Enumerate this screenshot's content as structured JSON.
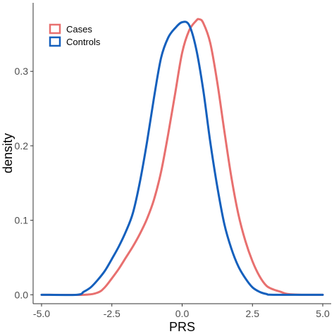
{
  "chart_data": {
    "type": "line",
    "title": "",
    "xlabel": "PRS",
    "ylabel": "density",
    "xlim": [
      -5.3,
      5.3
    ],
    "ylim": [
      -0.012,
      0.392
    ],
    "x_ticks": [
      -5.0,
      -2.5,
      0.0,
      2.5,
      5.0
    ],
    "x_tick_labels": [
      "-5.0",
      "-2.5",
      "0.0",
      "2.5",
      "5.0"
    ],
    "y_ticks": [
      0.0,
      0.1,
      0.2,
      0.3
    ],
    "y_tick_labels": [
      "0.0",
      "0.1",
      "0.2",
      "0.3"
    ],
    "grid": false,
    "legend_position": "top-left",
    "series": [
      {
        "name": "Cases",
        "color": "#e8706f",
        "points": [
          [
            -5.0,
            0.0
          ],
          [
            -3.5,
            0.0
          ],
          [
            -3.0,
            0.003
          ],
          [
            -2.75,
            0.01
          ],
          [
            -2.5,
            0.022
          ],
          [
            -2.25,
            0.035
          ],
          [
            -2.0,
            0.05
          ],
          [
            -1.75,
            0.065
          ],
          [
            -1.5,
            0.082
          ],
          [
            -1.25,
            0.102
          ],
          [
            -1.0,
            0.128
          ],
          [
            -0.75,
            0.165
          ],
          [
            -0.5,
            0.215
          ],
          [
            -0.25,
            0.27
          ],
          [
            0.0,
            0.325
          ],
          [
            0.25,
            0.355
          ],
          [
            0.5,
            0.368
          ],
          [
            0.6,
            0.37
          ],
          [
            0.75,
            0.365
          ],
          [
            1.0,
            0.338
          ],
          [
            1.25,
            0.285
          ],
          [
            1.5,
            0.22
          ],
          [
            1.75,
            0.158
          ],
          [
            2.0,
            0.108
          ],
          [
            2.25,
            0.072
          ],
          [
            2.5,
            0.045
          ],
          [
            2.75,
            0.025
          ],
          [
            3.0,
            0.012
          ],
          [
            3.25,
            0.007
          ],
          [
            3.5,
            0.004
          ],
          [
            3.75,
            0.001
          ],
          [
            4.25,
            0.0
          ],
          [
            5.0,
            0.0
          ]
        ]
      },
      {
        "name": "Controls",
        "color": "#1560bd",
        "points": [
          [
            -5.0,
            0.0
          ],
          [
            -3.75,
            0.0
          ],
          [
            -3.5,
            0.004
          ],
          [
            -3.25,
            0.01
          ],
          [
            -3.0,
            0.02
          ],
          [
            -2.75,
            0.032
          ],
          [
            -2.5,
            0.048
          ],
          [
            -2.25,
            0.065
          ],
          [
            -2.0,
            0.085
          ],
          [
            -1.75,
            0.11
          ],
          [
            -1.5,
            0.152
          ],
          [
            -1.25,
            0.205
          ],
          [
            -1.0,
            0.265
          ],
          [
            -0.75,
            0.318
          ],
          [
            -0.5,
            0.345
          ],
          [
            -0.25,
            0.358
          ],
          [
            0.0,
            0.366
          ],
          [
            0.25,
            0.362
          ],
          [
            0.5,
            0.33
          ],
          [
            0.75,
            0.275
          ],
          [
            1.0,
            0.205
          ],
          [
            1.25,
            0.145
          ],
          [
            1.5,
            0.095
          ],
          [
            1.75,
            0.062
          ],
          [
            2.0,
            0.038
          ],
          [
            2.25,
            0.022
          ],
          [
            2.5,
            0.01
          ],
          [
            2.75,
            0.004
          ],
          [
            3.0,
            0.001
          ],
          [
            3.25,
            0.0
          ],
          [
            5.0,
            0.0
          ]
        ]
      }
    ]
  }
}
